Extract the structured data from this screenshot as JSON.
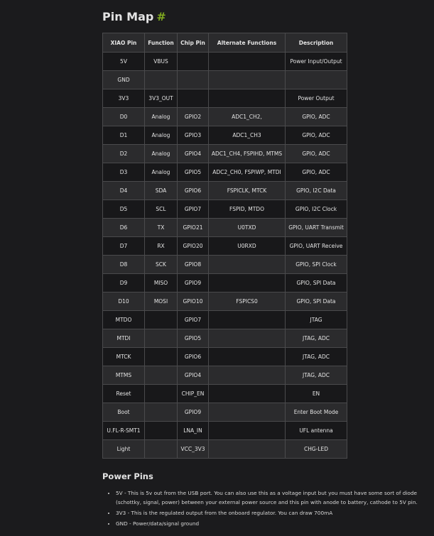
{
  "title": "Pin Map",
  "title_anchor": "#",
  "colors": {
    "accent": "#7fa81f",
    "background": "#1b1b1d",
    "row_light": "#2b2b2d",
    "row_dark": "#18181a"
  },
  "table": {
    "headers": [
      "XIAO Pin",
      "Function",
      "Chip Pin",
      "Alternate Functions",
      "Description"
    ],
    "rows": [
      [
        "5V",
        "VBUS",
        "",
        "",
        "Power Input/Output"
      ],
      [
        "GND",
        "",
        "",
        "",
        ""
      ],
      [
        "3V3",
        "3V3_OUT",
        "",
        "",
        "Power Output"
      ],
      [
        "D0",
        "Analog",
        "GPIO2",
        "ADC1_CH2,",
        "GPIO, ADC"
      ],
      [
        "D1",
        "Analog",
        "GPIO3",
        "ADC1_CH3",
        "GPIO, ADC"
      ],
      [
        "D2",
        "Analog",
        "GPIO4",
        "ADC1_CH4, FSPIHD, MTMS",
        "GPIO, ADC"
      ],
      [
        "D3",
        "Analog",
        "GPIO5",
        "ADC2_CH0, FSPIWP, MTDI",
        "GPIO, ADC"
      ],
      [
        "D4",
        "SDA",
        "GPIO6",
        "FSPICLK, MTCK",
        "GPIO, I2C Data"
      ],
      [
        "D5",
        "SCL",
        "GPIO7",
        "FSPID, MTDO",
        "GPIO, I2C Clock"
      ],
      [
        "D6",
        "TX",
        "GPIO21",
        "U0TXD",
        "GPIO, UART Transmit"
      ],
      [
        "D7",
        "RX",
        "GPIO20",
        "U0RXD",
        "GPIO, UART Receive"
      ],
      [
        "D8",
        "SCK",
        "GPIO8",
        "",
        "GPIO, SPI Clock"
      ],
      [
        "D9",
        "MISO",
        "GPIO9",
        "",
        "GPIO, SPI Data"
      ],
      [
        "D10",
        "MOSI",
        "GPIO10",
        "FSPICS0",
        "GPIO, SPI Data"
      ],
      [
        "MTDO",
        "",
        "GPIO7",
        "",
        "JTAG"
      ],
      [
        "MTDI",
        "",
        "GPIO5",
        "",
        "JTAG, ADC"
      ],
      [
        "MTCK",
        "",
        "GPIO6",
        "",
        "JTAG, ADC"
      ],
      [
        "MTMS",
        "",
        "GPIO4",
        "",
        "JTAG, ADC"
      ],
      [
        "Reset",
        "",
        "CHIP_EN",
        "",
        "EN"
      ],
      [
        "Boot",
        "",
        "GPIO9",
        "",
        "Enter Boot Mode"
      ],
      [
        "U.FL-R-SMT1",
        "",
        "LNA_IN",
        "",
        "UFL antenna"
      ],
      [
        "Light",
        "",
        "VCC_3V3",
        "",
        "CHG-LED"
      ]
    ]
  },
  "power_pins": {
    "heading": "Power Pins",
    "items": [
      "5V - This is 5v out from the USB port. You can also use this as a voltage input but you must have some sort of diode (schottky, signal, power) between your external power source and this pin with anode to battery, cathode to 5V pin.",
      "3V3 - This is the regulated output from the onboard regulator. You can draw 700mA",
      "GND - Power/data/signal ground"
    ]
  }
}
